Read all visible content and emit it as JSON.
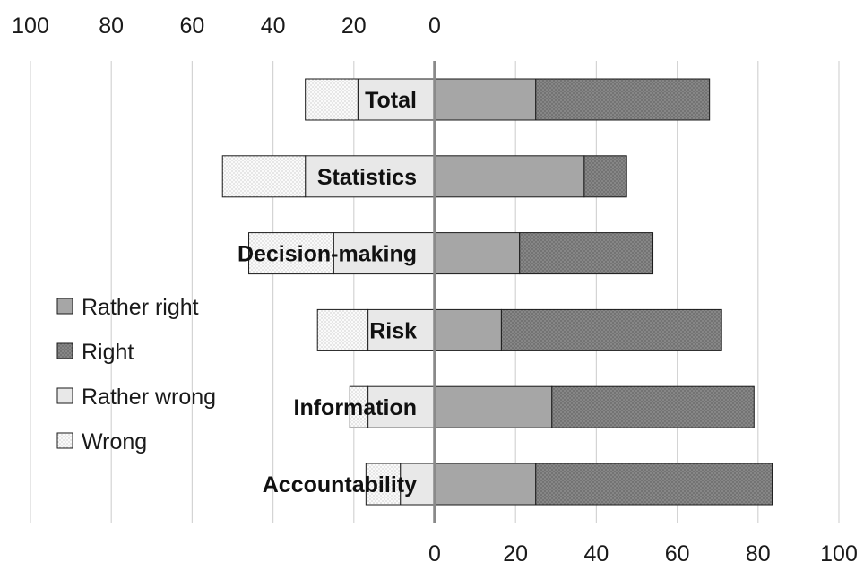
{
  "chart_data": {
    "type": "bar",
    "orientation": "horizontal-diverging",
    "categories": [
      "Total",
      "Statistics",
      "Decision-making",
      "Risk",
      "Information",
      "Accountability"
    ],
    "series": [
      {
        "name": "Rather right",
        "side": "right",
        "color": "#a6a6a6",
        "pattern": "solid",
        "values": [
          25,
          37,
          21,
          16.5,
          29,
          25
        ]
      },
      {
        "name": "Right",
        "side": "right",
        "color": "#8c8c8c",
        "pattern": "crosshatch",
        "values": [
          43,
          10.5,
          33,
          54.5,
          50,
          58.5
        ]
      },
      {
        "name": "Rather wrong",
        "side": "left",
        "color": "#e8e8e8",
        "pattern": "solid",
        "values": [
          19,
          32,
          25,
          16.5,
          16.5,
          8.5
        ]
      },
      {
        "name": "Wrong",
        "side": "left",
        "color": "#f7f7f7",
        "pattern": "dots",
        "values": [
          13,
          20.5,
          21,
          12.5,
          4.5,
          8.5
        ]
      }
    ],
    "top_axis": {
      "ticks": [
        "100",
        "80",
        "60",
        "40",
        "20",
        "0"
      ]
    },
    "bottom_axis": {
      "ticks": [
        "0",
        "20",
        "40",
        "60",
        "80",
        "100"
      ]
    },
    "xlim": [
      -100,
      100
    ],
    "grid": true,
    "legend_position": "left",
    "legend_order": [
      "Rather right",
      "Right",
      "Rather wrong",
      "Wrong"
    ]
  }
}
